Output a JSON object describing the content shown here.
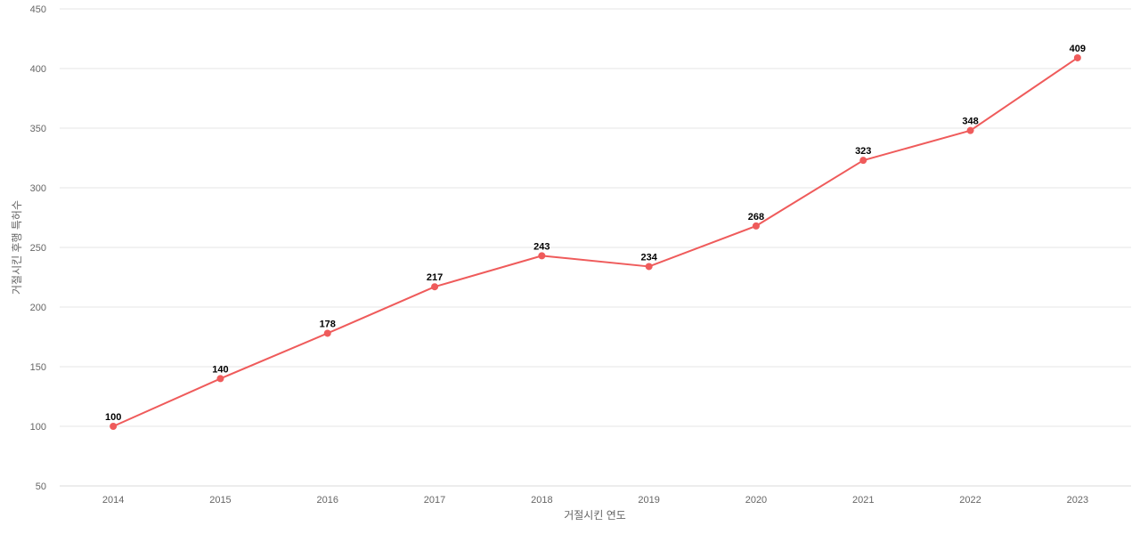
{
  "chart_data": {
    "type": "line",
    "title": "",
    "xlabel": "거절시킨 연도",
    "ylabel": "거절시킨 후행 특허수",
    "categories": [
      "2014",
      "2015",
      "2016",
      "2017",
      "2018",
      "2019",
      "2020",
      "2021",
      "2022",
      "2023"
    ],
    "series": [
      {
        "values": [
          100,
          140,
          178,
          217,
          243,
          234,
          268,
          323,
          348,
          409
        ]
      }
    ],
    "ylim": [
      50,
      450
    ],
    "yticks": [
      50,
      100,
      150,
      200,
      250,
      300,
      350,
      400,
      450
    ],
    "grid": true,
    "legend": "none",
    "colors": {
      "line": "#ef5b5b",
      "grid": "#e6e6e6",
      "axis_text": "#666666",
      "data_label": "#000000"
    }
  }
}
